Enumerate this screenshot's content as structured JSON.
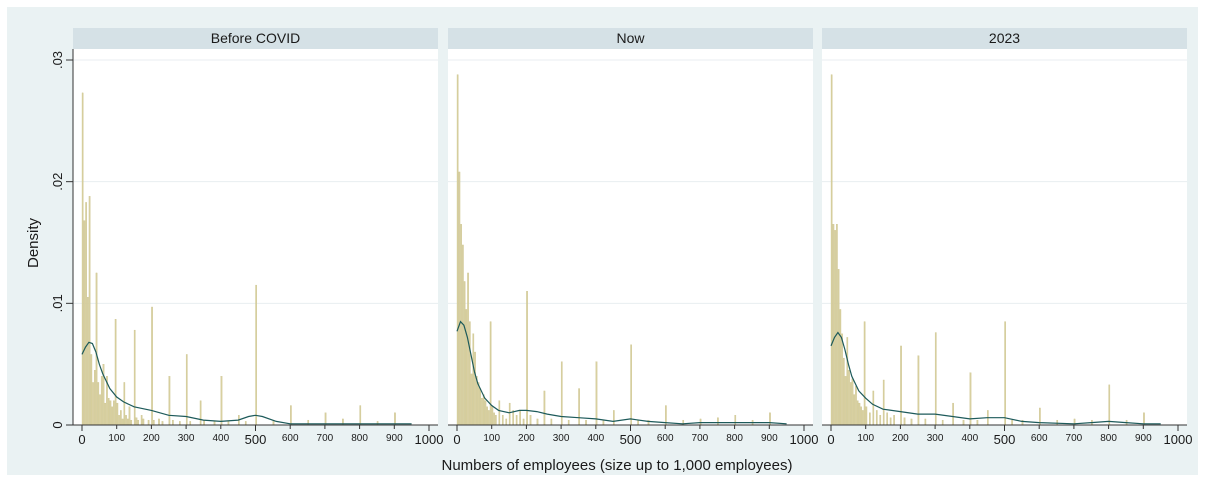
{
  "colors": {
    "outer_background": "#eaf2f3",
    "plot_background": "#ffffff",
    "strip_background": "#d5e1e6",
    "bar_fill": "#d8d0a0",
    "bar_stroke": "#c8bf86",
    "kde_line": "#1d5a5a",
    "gridline": "#e8eef0"
  },
  "labels": {
    "ylabel": "Density",
    "xlabel": "Numbers of employees (size up to 1,000 employees)"
  },
  "chart_data": {
    "type": "bar",
    "layout": "faceted histogram with kernel density overlay",
    "ylabel": "Density",
    "xlabel": "Numbers of employees (size up to 1,000 employees)",
    "xlim": [
      0,
      1000
    ],
    "ylim": [
      0,
      0.03
    ],
    "y_ticks": [
      {
        "value": 0,
        "label": "0"
      },
      {
        "value": 0.01,
        "label": ".01"
      },
      {
        "value": 0.02,
        "label": ".02"
      },
      {
        "value": 0.03,
        "label": ".03"
      }
    ],
    "x_ticks_major": [
      {
        "value": 0,
        "label": "0"
      },
      {
        "value": 500,
        "label": "500"
      },
      {
        "value": 1000,
        "label": "1000"
      }
    ],
    "x_ticks_minor": [
      {
        "value": 100,
        "label": "100"
      },
      {
        "value": 200,
        "label": "200"
      },
      {
        "value": 300,
        "label": "300"
      },
      {
        "value": 400,
        "label": "400"
      },
      {
        "value": 600,
        "label": "600"
      },
      {
        "value": 700,
        "label": "700"
      },
      {
        "value": 800,
        "label": "800"
      },
      {
        "value": 900,
        "label": "900"
      }
    ],
    "grid": true,
    "bin_width": 5,
    "panels": [
      {
        "title": "Before COVID",
        "bars": [
          [
            0,
            0.0273
          ],
          [
            5,
            0.0168
          ],
          [
            10,
            0.0183
          ],
          [
            15,
            0.0105
          ],
          [
            20,
            0.0188
          ],
          [
            25,
            0.0058
          ],
          [
            30,
            0.0035
          ],
          [
            35,
            0.0045
          ],
          [
            40,
            0.0125
          ],
          [
            45,
            0.0035
          ],
          [
            50,
            0.0025
          ],
          [
            55,
            0.004
          ],
          [
            60,
            0.005
          ],
          [
            65,
            0.0018
          ],
          [
            70,
            0.004
          ],
          [
            75,
            0.0022
          ],
          [
            80,
            0.002
          ],
          [
            85,
            0.0015
          ],
          [
            90,
            0.002
          ],
          [
            95,
            0.0087
          ],
          [
            100,
            0.0018
          ],
          [
            105,
            0.0008
          ],
          [
            110,
            0.0012
          ],
          [
            115,
            0.0005
          ],
          [
            120,
            0.0035
          ],
          [
            125,
            0.0008
          ],
          [
            130,
            0.0005
          ],
          [
            135,
            0.0015
          ],
          [
            140,
            0.0004
          ],
          [
            150,
            0.0078
          ],
          [
            155,
            0.0006
          ],
          [
            160,
            0.0004
          ],
          [
            170,
            0.0008
          ],
          [
            175,
            0.0005
          ],
          [
            190,
            0.0004
          ],
          [
            200,
            0.0097
          ],
          [
            205,
            0.0004
          ],
          [
            220,
            0.0005
          ],
          [
            230,
            0.0003
          ],
          [
            250,
            0.004
          ],
          [
            260,
            0.0004
          ],
          [
            280,
            0.0003
          ],
          [
            300,
            0.0058
          ],
          [
            310,
            0.0003
          ],
          [
            340,
            0.002
          ],
          [
            350,
            0.0004
          ],
          [
            380,
            0.0003
          ],
          [
            400,
            0.004
          ],
          [
            420,
            0.0003
          ],
          [
            450,
            0.0008
          ],
          [
            470,
            0.0003
          ],
          [
            500,
            0.0115
          ],
          [
            550,
            0.0004
          ],
          [
            600,
            0.0016
          ],
          [
            650,
            0.0004
          ],
          [
            700,
            0.001
          ],
          [
            750,
            0.0005
          ],
          [
            800,
            0.0016
          ],
          [
            850,
            0.0003
          ],
          [
            900,
            0.001
          ]
        ],
        "kde": [
          [
            0,
            0.0058
          ],
          [
            10,
            0.0064
          ],
          [
            20,
            0.0068
          ],
          [
            30,
            0.0067
          ],
          [
            40,
            0.006
          ],
          [
            50,
            0.005
          ],
          [
            60,
            0.0042
          ],
          [
            80,
            0.003
          ],
          [
            100,
            0.0023
          ],
          [
            120,
            0.0019
          ],
          [
            150,
            0.0015
          ],
          [
            200,
            0.0012
          ],
          [
            250,
            0.0008
          ],
          [
            300,
            0.0007
          ],
          [
            350,
            0.0004
          ],
          [
            400,
            0.0003
          ],
          [
            450,
            0.0004
          ],
          [
            480,
            0.0007
          ],
          [
            500,
            0.0008
          ],
          [
            520,
            0.0007
          ],
          [
            560,
            0.0003
          ],
          [
            600,
            0.0001
          ],
          [
            700,
            0.0001
          ],
          [
            800,
            0.0001
          ],
          [
            900,
            0.0001
          ],
          [
            950,
            0.0001
          ]
        ]
      },
      {
        "title": "Now",
        "bars": [
          [
            0,
            0.0288
          ],
          [
            5,
            0.0208
          ],
          [
            10,
            0.0165
          ],
          [
            15,
            0.0148
          ],
          [
            20,
            0.0118
          ],
          [
            25,
            0.0095
          ],
          [
            30,
            0.0125
          ],
          [
            35,
            0.0085
          ],
          [
            40,
            0.0042
          ],
          [
            45,
            0.0075
          ],
          [
            50,
            0.006
          ],
          [
            55,
            0.004
          ],
          [
            60,
            0.0035
          ],
          [
            65,
            0.003
          ],
          [
            70,
            0.0022
          ],
          [
            75,
            0.0025
          ],
          [
            80,
            0.002
          ],
          [
            85,
            0.0015
          ],
          [
            90,
            0.0012
          ],
          [
            95,
            0.0085
          ],
          [
            100,
            0.0015
          ],
          [
            105,
            0.001
          ],
          [
            110,
            0.0008
          ],
          [
            120,
            0.002
          ],
          [
            130,
            0.0008
          ],
          [
            140,
            0.0005
          ],
          [
            150,
            0.0018
          ],
          [
            160,
            0.0012
          ],
          [
            170,
            0.0008
          ],
          [
            180,
            0.0012
          ],
          [
            190,
            0.0005
          ],
          [
            200,
            0.011
          ],
          [
            210,
            0.0008
          ],
          [
            230,
            0.0005
          ],
          [
            250,
            0.0028
          ],
          [
            270,
            0.0005
          ],
          [
            300,
            0.0052
          ],
          [
            320,
            0.0004
          ],
          [
            350,
            0.003
          ],
          [
            370,
            0.0004
          ],
          [
            400,
            0.0052
          ],
          [
            420,
            0.0004
          ],
          [
            450,
            0.0012
          ],
          [
            500,
            0.0066
          ],
          [
            520,
            0.0004
          ],
          [
            550,
            0.0004
          ],
          [
            600,
            0.0016
          ],
          [
            650,
            0.0004
          ],
          [
            700,
            0.0005
          ],
          [
            750,
            0.0006
          ],
          [
            800,
            0.0008
          ],
          [
            850,
            0.0004
          ],
          [
            900,
            0.001
          ]
        ],
        "kde": [
          [
            0,
            0.0077
          ],
          [
            10,
            0.0085
          ],
          [
            20,
            0.0082
          ],
          [
            30,
            0.0072
          ],
          [
            40,
            0.0058
          ],
          [
            50,
            0.0044
          ],
          [
            60,
            0.0034
          ],
          [
            80,
            0.0022
          ],
          [
            100,
            0.0016
          ],
          [
            120,
            0.0012
          ],
          [
            150,
            0.001
          ],
          [
            180,
            0.0012
          ],
          [
            200,
            0.0012
          ],
          [
            230,
            0.0011
          ],
          [
            260,
            0.0009
          ],
          [
            300,
            0.0007
          ],
          [
            350,
            0.0006
          ],
          [
            400,
            0.0005
          ],
          [
            450,
            0.0003
          ],
          [
            500,
            0.0005
          ],
          [
            550,
            0.0003
          ],
          [
            600,
            0.0002
          ],
          [
            650,
            0.0001
          ],
          [
            700,
            0.0002
          ],
          [
            800,
            0.0002
          ],
          [
            900,
            0.0002
          ],
          [
            950,
            0.0001
          ]
        ]
      },
      {
        "title": "2023",
        "bars": [
          [
            0,
            0.0288
          ],
          [
            5,
            0.0165
          ],
          [
            10,
            0.016
          ],
          [
            15,
            0.0165
          ],
          [
            20,
            0.0128
          ],
          [
            25,
            0.0095
          ],
          [
            30,
            0.0075
          ],
          [
            35,
            0.0055
          ],
          [
            40,
            0.004
          ],
          [
            45,
            0.0072
          ],
          [
            50,
            0.0045
          ],
          [
            55,
            0.0035
          ],
          [
            60,
            0.0038
          ],
          [
            65,
            0.0025
          ],
          [
            70,
            0.0032
          ],
          [
            75,
            0.002
          ],
          [
            80,
            0.0018
          ],
          [
            85,
            0.0015
          ],
          [
            90,
            0.0012
          ],
          [
            95,
            0.0085
          ],
          [
            100,
            0.0015
          ],
          [
            110,
            0.001
          ],
          [
            120,
            0.0028
          ],
          [
            130,
            0.0012
          ],
          [
            140,
            0.0008
          ],
          [
            150,
            0.0037
          ],
          [
            160,
            0.001
          ],
          [
            170,
            0.0006
          ],
          [
            180,
            0.0008
          ],
          [
            200,
            0.0065
          ],
          [
            210,
            0.0006
          ],
          [
            230,
            0.0005
          ],
          [
            250,
            0.0057
          ],
          [
            270,
            0.0005
          ],
          [
            300,
            0.0076
          ],
          [
            320,
            0.0004
          ],
          [
            350,
            0.0018
          ],
          [
            380,
            0.0004
          ],
          [
            400,
            0.0043
          ],
          [
            420,
            0.0004
          ],
          [
            450,
            0.0012
          ],
          [
            500,
            0.0085
          ],
          [
            520,
            0.0004
          ],
          [
            550,
            0.0004
          ],
          [
            600,
            0.0014
          ],
          [
            650,
            0.0004
          ],
          [
            700,
            0.0005
          ],
          [
            750,
            0.0004
          ],
          [
            800,
            0.0033
          ],
          [
            850,
            0.0004
          ],
          [
            900,
            0.001
          ]
        ],
        "kde": [
          [
            0,
            0.0065
          ],
          [
            10,
            0.0072
          ],
          [
            20,
            0.0076
          ],
          [
            30,
            0.0072
          ],
          [
            40,
            0.0062
          ],
          [
            50,
            0.005
          ],
          [
            60,
            0.004
          ],
          [
            80,
            0.0028
          ],
          [
            100,
            0.0022
          ],
          [
            120,
            0.0017
          ],
          [
            150,
            0.0013
          ],
          [
            200,
            0.0011
          ],
          [
            250,
            0.0009
          ],
          [
            300,
            0.0009
          ],
          [
            350,
            0.0007
          ],
          [
            400,
            0.0005
          ],
          [
            450,
            0.0006
          ],
          [
            500,
            0.0006
          ],
          [
            550,
            0.0003
          ],
          [
            600,
            0.0002
          ],
          [
            700,
            0.0001
          ],
          [
            750,
            0.0002
          ],
          [
            800,
            0.0003
          ],
          [
            850,
            0.0002
          ],
          [
            900,
            0.0001
          ],
          [
            950,
            0.0001
          ]
        ]
      }
    ]
  }
}
